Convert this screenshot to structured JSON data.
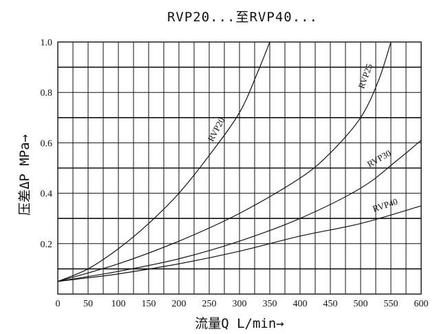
{
  "chart_data": {
    "type": "line",
    "title": "RVP20...至RVP40...",
    "xlabel": "流量Q  L/min→",
    "ylabel": "压差ΔP MPa→",
    "xlim": [
      0,
      600
    ],
    "ylim": [
      0,
      1.0
    ],
    "x_ticks": [
      "0",
      "50",
      "100",
      "150",
      "200",
      "250",
      "300",
      "350",
      "400",
      "450",
      "500",
      "550",
      "600"
    ],
    "y_ticks": [
      "0.2",
      "0.4",
      "0.6",
      "0.8",
      "1.0"
    ],
    "grid": true,
    "series": [
      {
        "name": "RVP20",
        "x": [
          0,
          50,
          100,
          150,
          200,
          250,
          300,
          330,
          350
        ],
        "y": [
          0.05,
          0.1,
          0.18,
          0.28,
          0.4,
          0.55,
          0.72,
          0.88,
          1.0
        ]
      },
      {
        "name": "RVP25",
        "x": [
          0,
          100,
          200,
          300,
          400,
          450,
          500,
          530,
          550
        ],
        "y": [
          0.05,
          0.12,
          0.21,
          0.32,
          0.46,
          0.56,
          0.7,
          0.85,
          1.0
        ]
      },
      {
        "name": "RVP30",
        "x": [
          0,
          100,
          200,
          300,
          400,
          500,
          560,
          600
        ],
        "y": [
          0.05,
          0.09,
          0.14,
          0.21,
          0.3,
          0.42,
          0.53,
          0.61
        ]
      },
      {
        "name": "RVP40",
        "x": [
          0,
          100,
          200,
          300,
          400,
          500,
          600
        ],
        "y": [
          0.05,
          0.08,
          0.12,
          0.17,
          0.23,
          0.28,
          0.35
        ]
      }
    ]
  }
}
